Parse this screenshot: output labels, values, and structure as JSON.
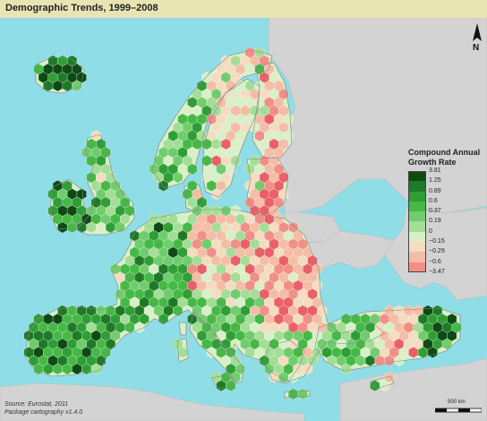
{
  "title": "Demographic Trends, 1999–2008",
  "legend": {
    "title_line1": "Compound Annual",
    "title_line2": "Growth Rate",
    "breaks": [
      "3.81",
      "1.25",
      "0.89",
      "0.6",
      "0.37",
      "0.19",
      "0",
      "−0.15",
      "−0.29",
      "−0.6",
      "−3.47"
    ],
    "colors": [
      "#0d4a14",
      "#1f7a27",
      "#2f9e36",
      "#45b845",
      "#70cc6c",
      "#a3dd96",
      "#d8efc7",
      "#f3dcc0",
      "#f4bda5",
      "#f08f86",
      "#ea6068"
    ]
  },
  "source_line1": "Source: Eurostat, 2011",
  "source_line2": "Package cartography v1.4.0",
  "scale_label": "500 km",
  "north_label": "N",
  "colors": {
    "sea": "#8fdde6",
    "land_outside": "#d3d3d3",
    "title_bar": "#e9e4b4"
  }
}
